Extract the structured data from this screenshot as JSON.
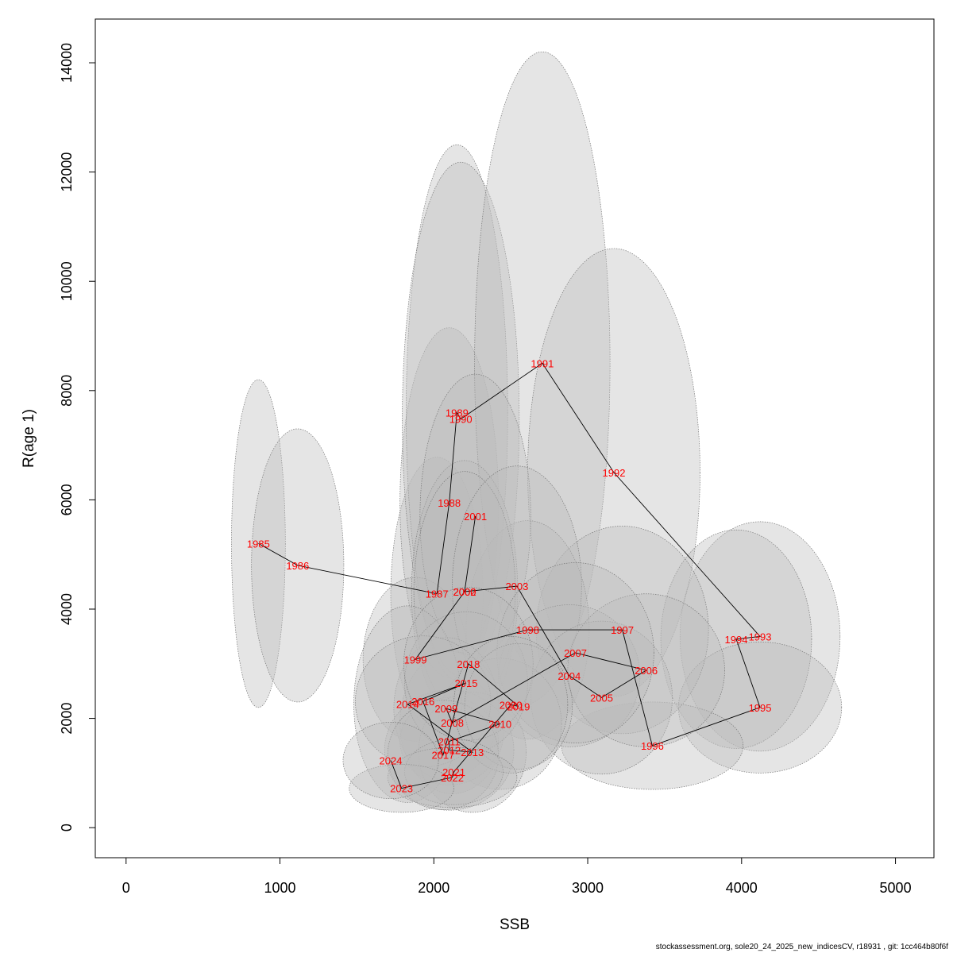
{
  "chart_data": {
    "type": "scatter",
    "title": "",
    "xlabel": "SSB",
    "ylabel": "R(age 1)",
    "xlim": [
      -200,
      5250
    ],
    "ylim": [
      -550,
      14800
    ],
    "xticks": [
      "0",
      "1000",
      "2000",
      "3000",
      "4000",
      "5000"
    ],
    "yticks": [
      "0",
      "2000",
      "4000",
      "6000",
      "8000",
      "10000",
      "12000",
      "14000"
    ],
    "xtick_values": [
      0,
      1000,
      2000,
      3000,
      4000,
      5000
    ],
    "ytick_values": [
      0,
      2000,
      4000,
      6000,
      8000,
      10000,
      12000,
      14000
    ],
    "grid": false,
    "ellipse_color": "#bbbbbb",
    "label_color": "#ff0000",
    "points": [
      {
        "year": "1985",
        "x": 860,
        "y": 5200,
        "ex": 175,
        "ey": 3000
      },
      {
        "year": "1986",
        "x": 1115,
        "y": 4800,
        "ex": 300,
        "ey": 2500
      },
      {
        "year": "1987",
        "x": 2020,
        "y": 4280,
        "ex": 300,
        "ey": 2500
      },
      {
        "year": "1988",
        "x": 2100,
        "y": 5950,
        "ex": 320,
        "ey": 3200
      },
      {
        "year": "1989",
        "x": 2150,
        "y": 7600,
        "ex": 330,
        "ey": 4900
      },
      {
        "year": "1990",
        "x": 2175,
        "y": 7480,
        "ex": 380,
        "ey": 4700
      },
      {
        "year": "1991",
        "x": 2705,
        "y": 8500,
        "ex": 440,
        "ey": 5700
      },
      {
        "year": "1992",
        "x": 3170,
        "y": 6500,
        "ex": 560,
        "ey": 4100
      },
      {
        "year": "1993",
        "x": 4120,
        "y": 3500,
        "ex": 520,
        "ey": 2100
      },
      {
        "year": "1994",
        "x": 3965,
        "y": 3450,
        "ex": 490,
        "ey": 2000
      },
      {
        "year": "1995",
        "x": 4120,
        "y": 2200,
        "ex": 530,
        "ey": 1200
      },
      {
        "year": "1996",
        "x": 3420,
        "y": 1500,
        "ex": 590,
        "ey": 800
      },
      {
        "year": "1997",
        "x": 3225,
        "y": 3620,
        "ex": 560,
        "ey": 1900
      },
      {
        "year": "1998",
        "x": 2610,
        "y": 3620,
        "ex": 400,
        "ey": 2000
      },
      {
        "year": "1999",
        "x": 1880,
        "y": 3080,
        "ex": 340,
        "ey": 1500
      },
      {
        "year": "2000",
        "x": 2200,
        "y": 4320,
        "ex": 345,
        "ey": 2400
      },
      {
        "year": "2001",
        "x": 2270,
        "y": 5700,
        "ex": 360,
        "ey": 2600
      },
      {
        "year": "2002",
        "x": 2200,
        "y": 4320,
        "ex": 330,
        "ey": 2200
      },
      {
        "year": "2003",
        "x": 2540,
        "y": 4420,
        "ex": 420,
        "ey": 2200
      },
      {
        "year": "2004",
        "x": 2880,
        "y": 2780,
        "ex": 460,
        "ey": 1300
      },
      {
        "year": "2005",
        "x": 3090,
        "y": 2380,
        "ex": 460,
        "ey": 1400
      },
      {
        "year": "2006",
        "x": 3380,
        "y": 2880,
        "ex": 510,
        "ey": 1400
      },
      {
        "year": "2007",
        "x": 2920,
        "y": 3200,
        "ex": 510,
        "ey": 1650
      },
      {
        "year": "2008",
        "x": 2120,
        "y": 1920,
        "ex": 340,
        "ey": 1300
      },
      {
        "year": "2009",
        "x": 2080,
        "y": 2180,
        "ex": 340,
        "ey": 1300
      },
      {
        "year": "2010",
        "x": 2430,
        "y": 1900,
        "ex": 400,
        "ey": 1200
      },
      {
        "year": "2011",
        "x": 2100,
        "y": 1580,
        "ex": 320,
        "ey": 800
      },
      {
        "year": "2012",
        "x": 2100,
        "y": 1420,
        "ex": 420,
        "ey": 1100
      },
      {
        "year": "2013",
        "x": 2250,
        "y": 1380,
        "ex": 350,
        "ey": 1100
      },
      {
        "year": "2014",
        "x": 1830,
        "y": 2260,
        "ex": 350,
        "ey": 1800
      },
      {
        "year": "2015",
        "x": 2210,
        "y": 2650,
        "ex": 400,
        "ey": 1300
      },
      {
        "year": "2016",
        "x": 1930,
        "y": 2310,
        "ex": 440,
        "ey": 1200
      },
      {
        "year": "2017",
        "x": 2060,
        "y": 1330,
        "ex": 360,
        "ey": 1000
      },
      {
        "year": "2018",
        "x": 2225,
        "y": 3000,
        "ex": 420,
        "ey": 1400
      },
      {
        "year": "2019",
        "x": 2550,
        "y": 2220,
        "ex": 350,
        "ey": 1150
      },
      {
        "year": "2020",
        "x": 2500,
        "y": 2250,
        "ex": 370,
        "ey": 1250
      },
      {
        "year": "2021",
        "x": 2130,
        "y": 1020,
        "ex": 320,
        "ey": 600
      },
      {
        "year": "2022",
        "x": 2120,
        "y": 920,
        "ex": 420,
        "ey": 550
      },
      {
        "year": "2023",
        "x": 1790,
        "y": 720,
        "ex": 340,
        "ey": 440
      },
      {
        "year": "2024",
        "x": 1720,
        "y": 1230,
        "ex": 310,
        "ey": 700
      }
    ]
  },
  "footer": "stockassessment.org, sole20_24_2025_new_indicesCV, r18931 , git: 1cc464b80f6f"
}
